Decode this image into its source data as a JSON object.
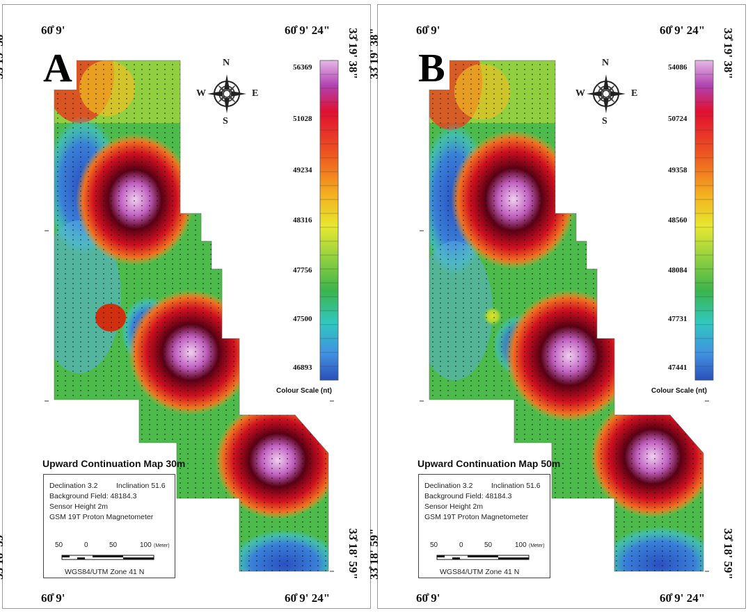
{
  "panels": [
    {
      "id": "A",
      "letter": "A",
      "coords": {
        "top_left": "60̊ 9'",
        "top_right": "60̊ 9' 24\"",
        "bottom_left": "60̊ 9'",
        "bottom_right": "60̊ 9' 24\"",
        "lat_top": "33̊ 19' 38\"",
        "lat_bottom": "33̊ 18' 59\""
      },
      "scale_values": [
        "56369",
        "51028",
        "49234",
        "48316",
        "47756",
        "47500",
        "46893"
      ],
      "scale_caption": "Colour Scale (nt)",
      "title": "Upward Continuation Map 30m",
      "info": {
        "declination": "Declination 3.2",
        "inclination": "Inclination 51.6",
        "background_field": "Background Field: 48184.3",
        "sensor_height": "Sensor Height 2m",
        "instrument": "GSM 19T Proton Magnetometer"
      },
      "bar_labels": [
        "50",
        "0",
        "50",
        "100",
        "(Meter)"
      ],
      "datum": "WGS84/UTM Zone 41 N"
    },
    {
      "id": "B",
      "letter": "B",
      "coords": {
        "top_left": "60̊ 9'",
        "top_right": "60̊ 9' 24\"",
        "bottom_left": "60̊ 9'",
        "bottom_right": "60̊ 9' 24\"",
        "lat_top": "33̊ 19' 38\"",
        "lat_bottom": "33̊ 18' 59\""
      },
      "scale_values": [
        "54086",
        "50724",
        "49358",
        "48560",
        "48084",
        "47731",
        "47441"
      ],
      "scale_caption": "Colour Scale (nt)",
      "title": "Upward Continuation Map 50m",
      "info": {
        "declination": "Declination 3.2",
        "inclination": "Inclination 51.6",
        "background_field": "Background Field: 48184.3",
        "sensor_height": "Sensor Height 2m",
        "instrument": "GSM 19T Proton Magnetometer"
      },
      "bar_labels": [
        "50",
        "0",
        "50",
        "100",
        "(Meter)"
      ],
      "datum": "WGS84/UTM Zone 41 N"
    }
  ],
  "compass": {
    "n": "N",
    "s": "S",
    "e": "E",
    "w": "W"
  },
  "colors": {
    "low": "#2b5cc6",
    "mid": "#3cb44b",
    "high": "#e02020",
    "peak": "#e8b4e8",
    "deep": "#4a0010"
  }
}
